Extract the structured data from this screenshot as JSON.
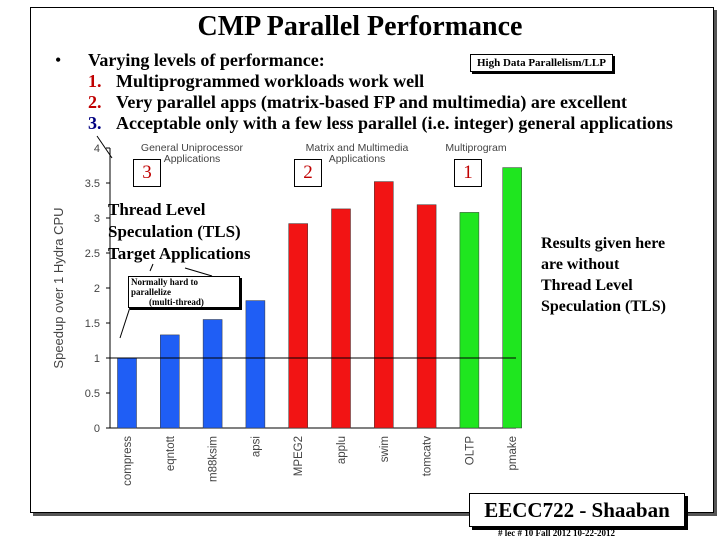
{
  "slide": {
    "title": "CMP Parallel Performance",
    "bullet": "•",
    "intro": "Varying levels of performance:",
    "items": [
      {
        "num": "1.",
        "text": "Multiprogrammed workloads work well",
        "num_color": "#c00000"
      },
      {
        "num": "2.",
        "text": "Very parallel apps (matrix-based FP and multimedia) are excellent",
        "num_color": "#c00000"
      },
      {
        "num": "3.",
        "text": "Acceptable only with a few less parallel (i.e. integer) general applications",
        "num_color": "#000080"
      }
    ],
    "callout_high_parallelism": "High Data Parallelism/LLP",
    "tls_label": [
      "Thread Level",
      "Speculation (TLS)",
      "Target Applications"
    ],
    "hard_note": [
      "Normally hard to parallelize",
      "(multi-thread)"
    ],
    "results_note": [
      "Results given here",
      "are without",
      "Thread Level",
      "Speculation (TLS)"
    ],
    "group_numbers": [
      "3",
      "2",
      "1"
    ],
    "footer": "EECC722 - Shaaban",
    "meta": "#  lec # 10   Fall 2012   10-22-2012"
  },
  "chart_data": {
    "type": "bar",
    "ylabel": "Speedup over 1 Hydra CPU",
    "ylim": [
      0,
      4
    ],
    "yticks": [
      "0",
      "0.5",
      "1",
      "1.5",
      "2",
      "2.5",
      "3",
      "3.5",
      "4"
    ],
    "reference_line": 1,
    "groups": [
      {
        "name": "General Uniprocessor Applications",
        "color": "#1f5ef5",
        "categories": [
          "compress",
          "eqntott",
          "m88ksim",
          "apsi"
        ],
        "values": [
          1.0,
          1.33,
          1.55,
          1.82
        ]
      },
      {
        "name": "Matrix and Multimedia Applications",
        "color": "#f21414",
        "categories": [
          "MPEG2",
          "applu",
          "swim",
          "tomcatv"
        ],
        "values": [
          2.92,
          3.13,
          3.52,
          3.19
        ]
      },
      {
        "name": "Multiprogram",
        "color": "#1fe61f",
        "categories": [
          "OLTP",
          "pmake"
        ],
        "values": [
          3.08,
          3.72
        ]
      }
    ]
  }
}
